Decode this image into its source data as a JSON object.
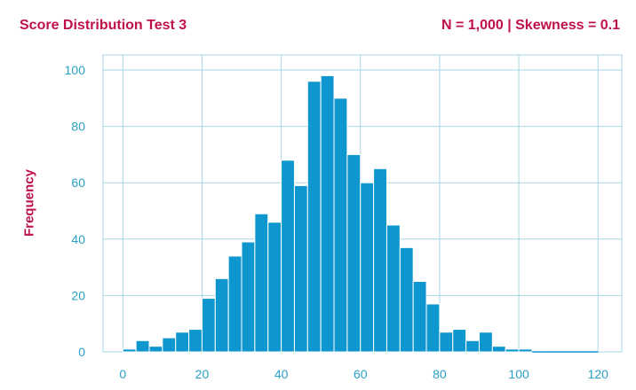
{
  "header": {
    "title": "Score Distribution Test 3",
    "stats": "N = 1,000 | Skewness = 0.1"
  },
  "colors": {
    "bar": "#0e96cf",
    "text_accent": "#c01048",
    "tick": "#2aa0c8",
    "grid": "#a8d6e6"
  },
  "chart_data": {
    "type": "bar",
    "title": "Score Distribution Test 3",
    "subtitle": "N = 1,000 | Skewness = 0.1",
    "xlabel": "",
    "ylabel": "Frequency",
    "bin_width": 3.333,
    "bin_start": 0,
    "values": [
      1,
      4,
      2,
      5,
      7,
      8,
      19,
      26,
      34,
      39,
      49,
      46,
      68,
      59,
      96,
      98,
      90,
      70,
      60,
      65,
      45,
      37,
      25,
      17,
      7,
      8,
      4,
      7,
      2,
      1,
      1,
      0,
      0,
      0,
      0,
      0
    ],
    "xlim": [
      -5,
      126
    ],
    "ylim": [
      0,
      100
    ],
    "xticks": [
      "0",
      "20",
      "40",
      "60",
      "80",
      "100",
      "120"
    ],
    "yticks": [
      "0",
      "20",
      "40",
      "60",
      "80",
      "100"
    ],
    "grid": true
  }
}
